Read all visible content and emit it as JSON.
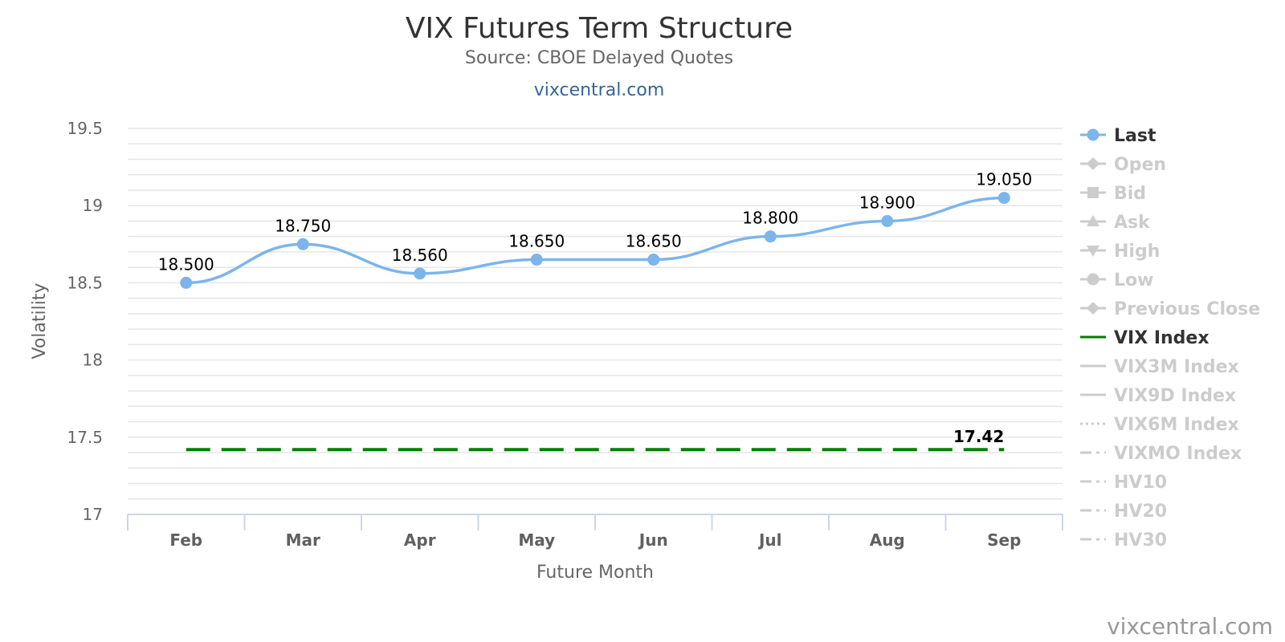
{
  "chart_data": {
    "type": "line",
    "title": "VIX Futures Term Structure",
    "subtitle": "Source: CBOE Delayed Quotes",
    "link": "vixcentral.com",
    "credit": "vixcentral.com",
    "xlabel": "Future Month",
    "ylabel": "Volatility",
    "categories": [
      "Feb",
      "Mar",
      "Apr",
      "May",
      "Jun",
      "Jul",
      "Aug",
      "Sep"
    ],
    "ylim": [
      17,
      19.5
    ],
    "yticks": [
      17,
      17.5,
      18,
      18.5,
      19,
      19.5
    ],
    "ytick_labels": [
      "17",
      "17.5",
      "18",
      "18.5",
      "19",
      "19.5"
    ],
    "grid": true,
    "legend_position": "right",
    "series": [
      {
        "name": "Last",
        "values": [
          18.5,
          18.75,
          18.56,
          18.65,
          18.65,
          18.8,
          18.9,
          19.05
        ],
        "labels": [
          "18.500",
          "18.750",
          "18.560",
          "18.650",
          "18.650",
          "18.800",
          "18.900",
          "19.050"
        ],
        "color": "#7cb5ec",
        "style": "spline",
        "visible": true
      },
      {
        "name": "VIX Index",
        "values": [
          17.42,
          17.42,
          17.42,
          17.42,
          17.42,
          17.42,
          17.42,
          17.42
        ],
        "end_label": "17.42",
        "color": "#008000",
        "style": "dashed",
        "visible": true
      }
    ],
    "legend": [
      {
        "name": "Last",
        "symbol": "circle-line",
        "active": true
      },
      {
        "name": "Open",
        "symbol": "diamond-line",
        "active": false
      },
      {
        "name": "Bid",
        "symbol": "square-line",
        "active": false
      },
      {
        "name": "Ask",
        "symbol": "triangle-line",
        "active": false
      },
      {
        "name": "High",
        "symbol": "triangle-down-line",
        "active": false
      },
      {
        "name": "Low",
        "symbol": "circle-line",
        "active": false
      },
      {
        "name": "Previous Close",
        "symbol": "diamond-line",
        "active": false
      },
      {
        "name": "VIX Index",
        "symbol": "line",
        "active": true
      },
      {
        "name": "VIX3M Index",
        "symbol": "line",
        "active": false
      },
      {
        "name": "VIX9D Index",
        "symbol": "line",
        "active": false
      },
      {
        "name": "VIX6M Index",
        "symbol": "dotted-line",
        "active": false
      },
      {
        "name": "VIXMO Index",
        "symbol": "dashdot-line",
        "active": false
      },
      {
        "name": "HV10",
        "symbol": "dashdot-line",
        "active": false
      },
      {
        "name": "HV20",
        "symbol": "dashdot-line",
        "active": false
      },
      {
        "name": "HV30",
        "symbol": "dashdot-line",
        "active": false
      }
    ],
    "colors": {
      "legend_active": "#333333",
      "legend_inactive": "#cccccc",
      "grid": "#e6e6e6",
      "axis": "#ccd6eb"
    }
  }
}
